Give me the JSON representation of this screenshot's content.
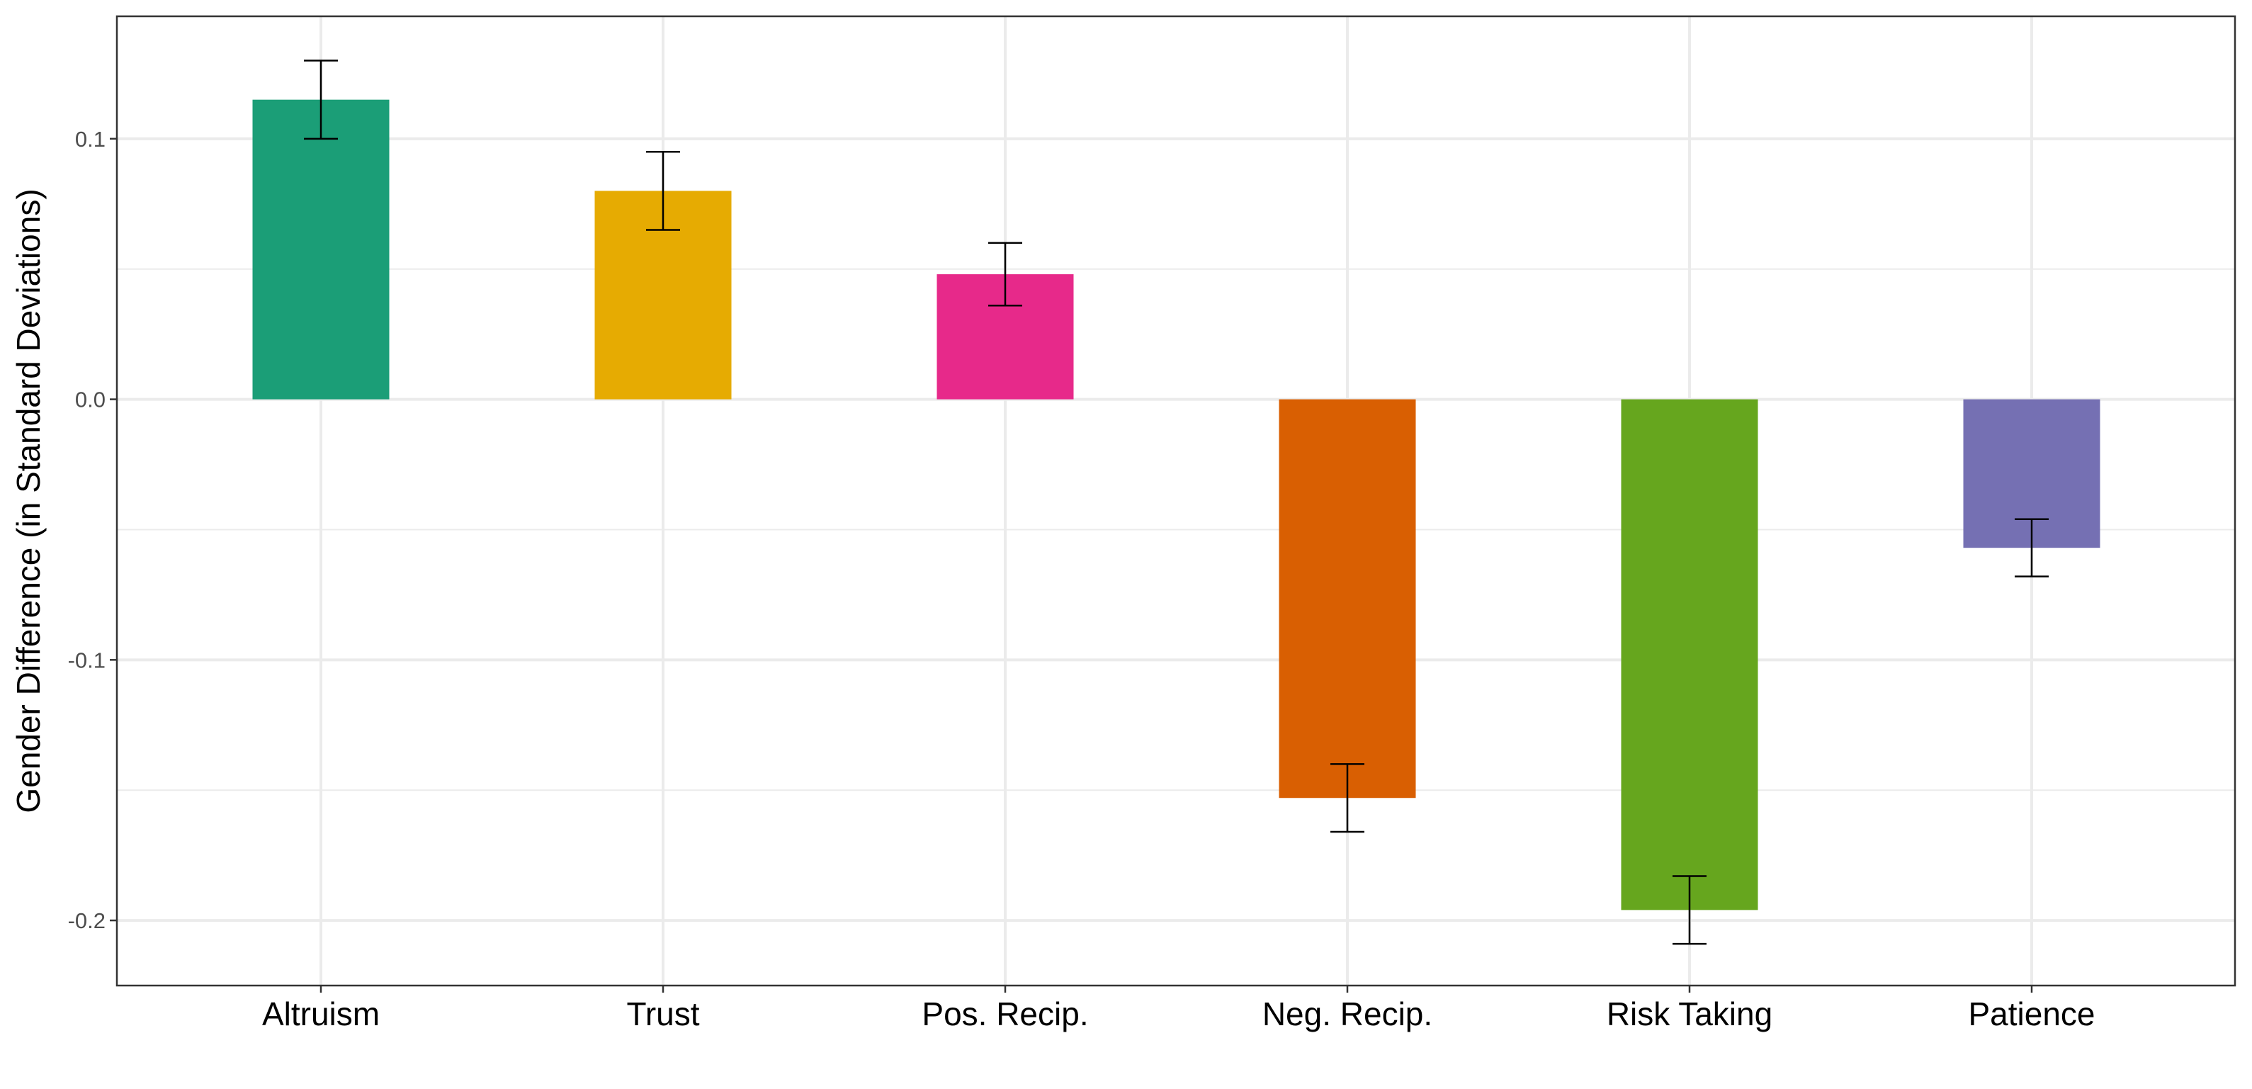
{
  "chart_data": {
    "type": "bar",
    "categories": [
      "Altruism",
      "Trust",
      "Pos. Recip.",
      "Neg. Recip.",
      "Risk Taking",
      "Patience"
    ],
    "values": [
      0.115,
      0.08,
      0.048,
      -0.153,
      -0.196,
      -0.057
    ],
    "error_low": [
      0.1,
      0.065,
      0.036,
      -0.166,
      -0.209,
      -0.068
    ],
    "error_high": [
      0.13,
      0.095,
      0.06,
      -0.14,
      -0.183,
      -0.046
    ],
    "colors": [
      "#1b9e77",
      "#e6ab02",
      "#e7298a",
      "#d95f02",
      "#66a61e",
      "#7570b3"
    ],
    "ylabel": "Gender Difference (in Standard Deviations)",
    "ylim": [
      -0.225,
      0.147
    ],
    "yticks": [
      0.1,
      0.0,
      -0.1,
      -0.2
    ],
    "ytick_labels": [
      "0.1",
      "0.0",
      "-0.1",
      "-0.2"
    ],
    "yminor_ticks": [
      0.05,
      -0.05,
      -0.15
    ],
    "grid": true,
    "legend": "none"
  }
}
